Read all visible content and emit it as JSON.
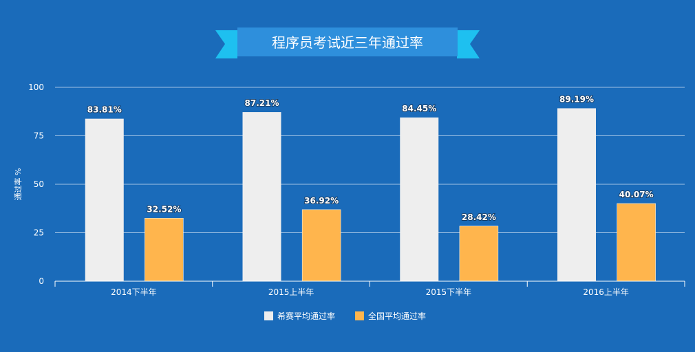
{
  "colors": {
    "background": "#1a6bba",
    "series_1": "#eeeeee",
    "series_2": "#ffb54d",
    "ribbon": "#2e8fdc",
    "ribbon_tail": "#1ec0f0"
  },
  "chart_data": {
    "type": "bar",
    "title": "程序员考试近三年通过率",
    "ylabel": "通过率 %",
    "xlabel": "",
    "categories": [
      "2014下半年",
      "2015上半年",
      "2015下半年",
      "2016上半年"
    ],
    "series": [
      {
        "name": "希赛平均通过率",
        "values": [
          83.81,
          87.21,
          84.45,
          89.19
        ],
        "labels": [
          "83.81%",
          "87.21%",
          "84.45%",
          "89.19%"
        ]
      },
      {
        "name": "全国平均通过率",
        "values": [
          32.52,
          36.92,
          28.42,
          40.07
        ],
        "labels": [
          "32.52%",
          "36.92%",
          "28.42%",
          "40.07%"
        ]
      }
    ],
    "ylim": [
      0,
      100
    ],
    "yticks": [
      0,
      25,
      50,
      75,
      100
    ],
    "grid": true,
    "legend": "bottom-center"
  }
}
